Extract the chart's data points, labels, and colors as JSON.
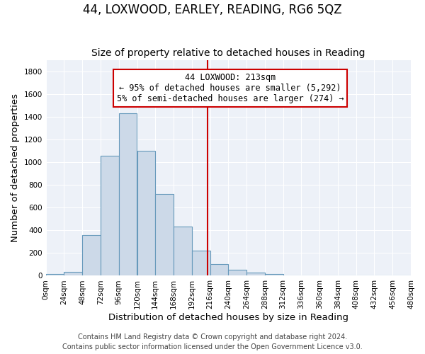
{
  "title": "44, LOXWOOD, EARLEY, READING, RG6 5QZ",
  "subtitle": "Size of property relative to detached houses in Reading",
  "xlabel": "Distribution of detached houses by size in Reading",
  "ylabel": "Number of detached properties",
  "bar_color": "#ccd9e8",
  "bar_edge_color": "#6699bb",
  "bin_edges": [
    0,
    24,
    48,
    72,
    96,
    120,
    144,
    168,
    192,
    216,
    240,
    264,
    288,
    312,
    336,
    360,
    384,
    408,
    432,
    456,
    480
  ],
  "bar_heights": [
    15,
    35,
    355,
    1055,
    1430,
    1100,
    720,
    435,
    220,
    105,
    55,
    25,
    15,
    0,
    0,
    0,
    0,
    0,
    0,
    0
  ],
  "property_size": 213,
  "vline_color": "#cc0000",
  "annotation_line1": "44 LOXWOOD: 213sqm",
  "annotation_line2": "← 95% of detached houses are smaller (5,292)",
  "annotation_line3": "5% of semi-detached houses are larger (274) →",
  "annotation_box_color": "#ffffff",
  "annotation_box_edge": "#cc0000",
  "tick_labels": [
    "0sqm",
    "24sqm",
    "48sqm",
    "72sqm",
    "96sqm",
    "120sqm",
    "144sqm",
    "168sqm",
    "192sqm",
    "216sqm",
    "240sqm",
    "264sqm",
    "288sqm",
    "312sqm",
    "336sqm",
    "360sqm",
    "384sqm",
    "408sqm",
    "432sqm",
    "456sqm",
    "480sqm"
  ],
  "ylim": [
    0,
    1900
  ],
  "yticks": [
    0,
    200,
    400,
    600,
    800,
    1000,
    1200,
    1400,
    1600,
    1800
  ],
  "footer1": "Contains HM Land Registry data © Crown copyright and database right 2024.",
  "footer2": "Contains public sector information licensed under the Open Government Licence v3.0.",
  "background_color": "#ffffff",
  "plot_background": "#edf1f8",
  "grid_color": "#ffffff",
  "title_fontsize": 12,
  "subtitle_fontsize": 10,
  "axis_label_fontsize": 9.5,
  "tick_fontsize": 7.5,
  "footer_fontsize": 7,
  "annot_fontsize": 8.5
}
